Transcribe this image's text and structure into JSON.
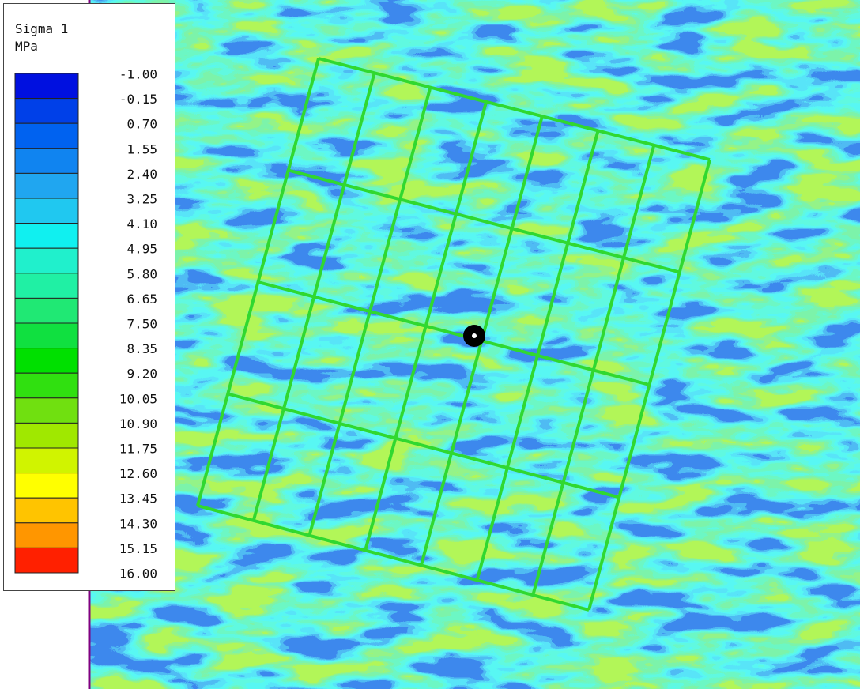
{
  "legend": {
    "title": "Sigma 1",
    "unit": "MPa",
    "labels": [
      "-1.00",
      "-0.15",
      "0.70",
      "1.55",
      "2.40",
      "3.25",
      "4.10",
      "4.95",
      "5.80",
      "6.65",
      "7.50",
      "8.35",
      "9.20",
      "10.05",
      "10.90",
      "11.75",
      "12.60",
      "13.45",
      "14.30",
      "15.15",
      "16.00"
    ],
    "colors": [
      "#0010e0",
      "#0040e8",
      "#0062f0",
      "#1084f0",
      "#20a6f0",
      "#20c8f0",
      "#10f0f0",
      "#20f0cc",
      "#20f0a4",
      "#20e874",
      "#10e040",
      "#00e000",
      "#30e010",
      "#70e010",
      "#a0e800",
      "#d0f400",
      "#ffff00",
      "#ffc400",
      "#ff9600",
      "#ff2000"
    ]
  }
}
